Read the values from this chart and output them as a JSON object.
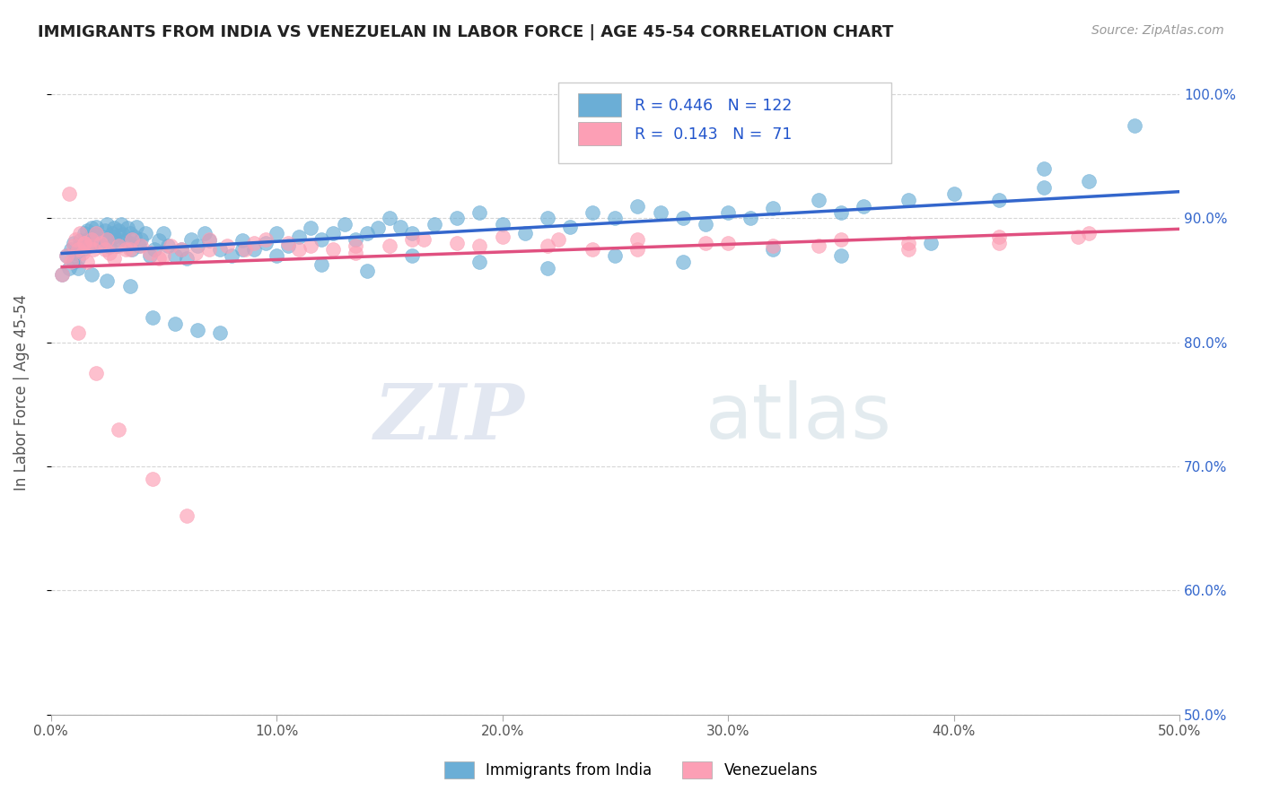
{
  "title": "IMMIGRANTS FROM INDIA VS VENEZUELAN IN LABOR FORCE | AGE 45-54 CORRELATION CHART",
  "source": "Source: ZipAtlas.com",
  "ylabel": "In Labor Force | Age 45-54",
  "xlim": [
    0.0,
    0.5
  ],
  "ylim": [
    0.5,
    1.02
  ],
  "yticks": [
    0.5,
    0.6,
    0.7,
    0.8,
    0.9,
    1.0
  ],
  "ytick_labels": [
    "50.0%",
    "60.0%",
    "70.0%",
    "80.0%",
    "90.0%",
    "100.0%"
  ],
  "xticks": [
    0.0,
    0.1,
    0.2,
    0.3,
    0.4,
    0.5
  ],
  "xtick_labels": [
    "0.0%",
    "10.0%",
    "20.0%",
    "30.0%",
    "40.0%",
    "50.0%"
  ],
  "legend_label_india": "Immigrants from India",
  "legend_label_venezuela": "Venezuelans",
  "R_india": 0.446,
  "N_india": 122,
  "R_venezuela": 0.143,
  "N_venezuela": 71,
  "color_india": "#6baed6",
  "color_venezuela": "#fc9fb5",
  "color_trendline_india": "#3366cc",
  "color_trendline_venezuela": "#e05080",
  "background_color": "#ffffff",
  "watermark_zip": "ZIP",
  "watermark_atlas": "atlas",
  "india_x": [
    0.005,
    0.007,
    0.008,
    0.009,
    0.01,
    0.01,
    0.011,
    0.012,
    0.013,
    0.013,
    0.014,
    0.015,
    0.015,
    0.016,
    0.016,
    0.017,
    0.018,
    0.018,
    0.019,
    0.02,
    0.02,
    0.021,
    0.022,
    0.023,
    0.024,
    0.025,
    0.025,
    0.026,
    0.027,
    0.028,
    0.028,
    0.029,
    0.03,
    0.03,
    0.031,
    0.032,
    0.033,
    0.034,
    0.035,
    0.035,
    0.036,
    0.037,
    0.038,
    0.039,
    0.04,
    0.042,
    0.044,
    0.046,
    0.048,
    0.05,
    0.052,
    0.055,
    0.058,
    0.06,
    0.062,
    0.065,
    0.068,
    0.07,
    0.075,
    0.08,
    0.085,
    0.09,
    0.095,
    0.1,
    0.105,
    0.11,
    0.115,
    0.12,
    0.125,
    0.13,
    0.135,
    0.14,
    0.145,
    0.15,
    0.155,
    0.16,
    0.17,
    0.18,
    0.19,
    0.2,
    0.21,
    0.22,
    0.23,
    0.24,
    0.25,
    0.26,
    0.27,
    0.28,
    0.29,
    0.3,
    0.31,
    0.32,
    0.34,
    0.35,
    0.36,
    0.38,
    0.4,
    0.42,
    0.44,
    0.46,
    0.012,
    0.018,
    0.025,
    0.035,
    0.045,
    0.055,
    0.065,
    0.075,
    0.085,
    0.1,
    0.12,
    0.14,
    0.16,
    0.19,
    0.22,
    0.25,
    0.28,
    0.32,
    0.35,
    0.39,
    0.44,
    0.48
  ],
  "india_y": [
    0.855,
    0.87,
    0.86,
    0.875,
    0.88,
    0.865,
    0.872,
    0.868,
    0.878,
    0.882,
    0.875,
    0.88,
    0.888,
    0.883,
    0.89,
    0.878,
    0.885,
    0.892,
    0.88,
    0.887,
    0.893,
    0.882,
    0.878,
    0.885,
    0.89,
    0.883,
    0.895,
    0.877,
    0.888,
    0.892,
    0.885,
    0.878,
    0.883,
    0.89,
    0.895,
    0.887,
    0.882,
    0.892,
    0.88,
    0.888,
    0.875,
    0.885,
    0.893,
    0.878,
    0.883,
    0.888,
    0.87,
    0.875,
    0.882,
    0.888,
    0.878,
    0.87,
    0.875,
    0.868,
    0.883,
    0.878,
    0.888,
    0.882,
    0.875,
    0.87,
    0.882,
    0.875,
    0.88,
    0.888,
    0.878,
    0.885,
    0.892,
    0.883,
    0.888,
    0.895,
    0.883,
    0.888,
    0.892,
    0.9,
    0.893,
    0.888,
    0.895,
    0.9,
    0.905,
    0.895,
    0.888,
    0.9,
    0.893,
    0.905,
    0.9,
    0.91,
    0.905,
    0.9,
    0.895,
    0.905,
    0.9,
    0.908,
    0.915,
    0.905,
    0.91,
    0.915,
    0.92,
    0.915,
    0.925,
    0.93,
    0.86,
    0.855,
    0.85,
    0.845,
    0.82,
    0.815,
    0.81,
    0.808,
    0.875,
    0.87,
    0.863,
    0.858,
    0.87,
    0.865,
    0.86,
    0.87,
    0.865,
    0.875,
    0.87,
    0.88,
    0.94,
    0.975
  ],
  "venezuela_x": [
    0.005,
    0.007,
    0.009,
    0.01,
    0.011,
    0.012,
    0.013,
    0.014,
    0.015,
    0.016,
    0.017,
    0.018,
    0.019,
    0.02,
    0.022,
    0.024,
    0.026,
    0.028,
    0.03,
    0.033,
    0.036,
    0.04,
    0.044,
    0.048,
    0.053,
    0.058,
    0.064,
    0.07,
    0.078,
    0.086,
    0.095,
    0.105,
    0.115,
    0.125,
    0.135,
    0.15,
    0.165,
    0.18,
    0.2,
    0.22,
    0.24,
    0.26,
    0.29,
    0.32,
    0.35,
    0.38,
    0.42,
    0.46,
    0.015,
    0.025,
    0.035,
    0.05,
    0.07,
    0.09,
    0.11,
    0.135,
    0.16,
    0.19,
    0.225,
    0.26,
    0.3,
    0.34,
    0.38,
    0.42,
    0.455,
    0.008,
    0.012,
    0.02,
    0.03,
    0.045,
    0.06
  ],
  "venezuela_y": [
    0.855,
    0.87,
    0.865,
    0.878,
    0.883,
    0.875,
    0.888,
    0.872,
    0.88,
    0.865,
    0.878,
    0.883,
    0.875,
    0.888,
    0.88,
    0.875,
    0.872,
    0.868,
    0.878,
    0.875,
    0.883,
    0.878,
    0.872,
    0.868,
    0.878,
    0.875,
    0.872,
    0.883,
    0.878,
    0.875,
    0.883,
    0.88,
    0.878,
    0.875,
    0.872,
    0.878,
    0.883,
    0.88,
    0.885,
    0.878,
    0.875,
    0.883,
    0.88,
    0.878,
    0.883,
    0.88,
    0.885,
    0.888,
    0.88,
    0.883,
    0.875,
    0.87,
    0.875,
    0.88,
    0.875,
    0.878,
    0.883,
    0.878,
    0.883,
    0.875,
    0.88,
    0.878,
    0.875,
    0.88,
    0.885,
    0.92,
    0.808,
    0.775,
    0.73,
    0.69,
    0.66
  ]
}
